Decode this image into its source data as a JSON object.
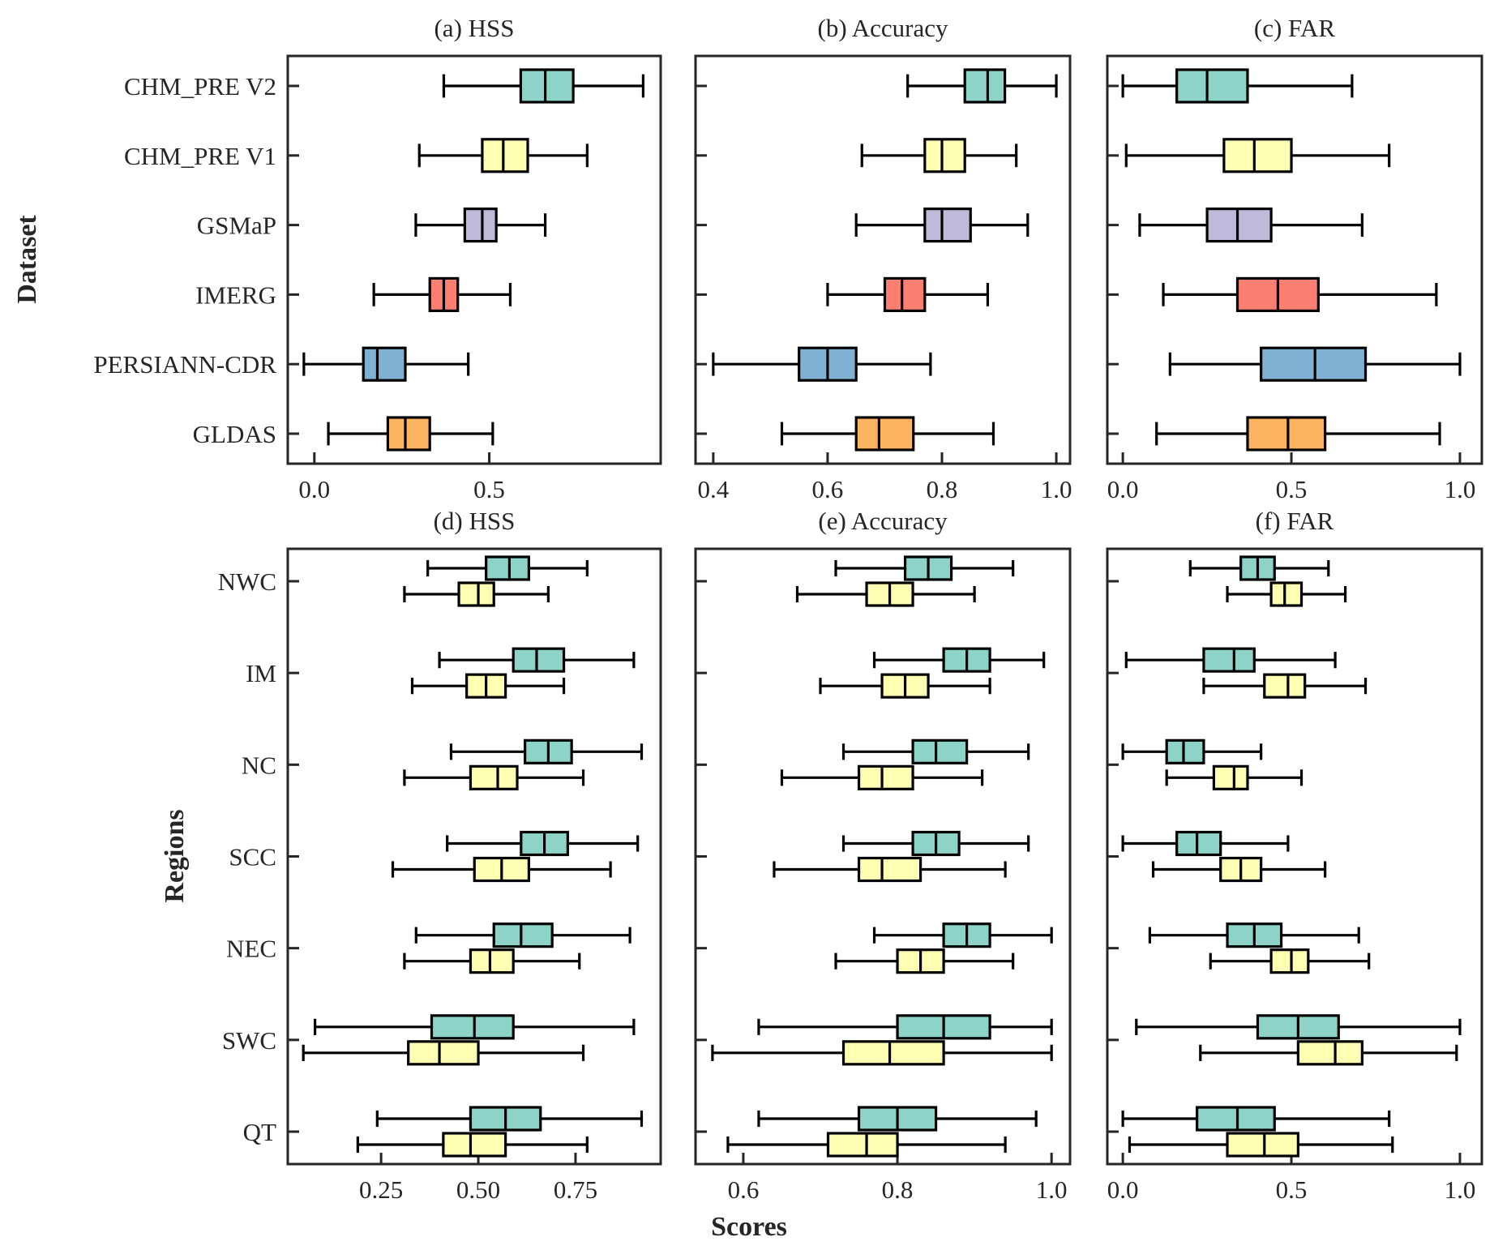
{
  "figure": {
    "ylabel_top": "Dataset",
    "ylabel_bottom": "Regions",
    "xlabel": "Scores"
  },
  "colors": {
    "CHM_PRE V2": "#8dd3c7",
    "CHM_PRE V1": "#ffffb3",
    "GSMaP": "#bebada",
    "IMERG": "#fb8072",
    "PERSIANN-CDR": "#80b1d3",
    "GLDAS": "#fdb462"
  },
  "chart_data": [
    {
      "type": "boxplot-horizontal",
      "panel": "a",
      "title": "(a) HSS",
      "xlabel": "",
      "ylabel": "Dataset",
      "xlim": [
        -0.076,
        0.99
      ],
      "xticks": [
        0.0,
        0.5
      ],
      "xtick_labels": [
        "0.0",
        "0.5"
      ],
      "categories": [
        "CHM_PRE V2",
        "CHM_PRE V1",
        "GSMaP",
        "IMERG",
        "PERSIANN-CDR",
        "GLDAS"
      ],
      "series": [
        {
          "name": "CHM_PRE V2",
          "whislo": 0.37,
          "q1": 0.59,
          "median": 0.66,
          "q3": 0.74,
          "whishi": 0.94
        },
        {
          "name": "CHM_PRE V1",
          "whislo": 0.3,
          "q1": 0.48,
          "median": 0.54,
          "q3": 0.61,
          "whishi": 0.78
        },
        {
          "name": "GSMaP",
          "whislo": 0.29,
          "q1": 0.43,
          "median": 0.48,
          "q3": 0.52,
          "whishi": 0.66
        },
        {
          "name": "IMERG",
          "whislo": 0.17,
          "q1": 0.33,
          "median": 0.37,
          "q3": 0.41,
          "whishi": 0.56
        },
        {
          "name": "PERSIANN-CDR",
          "whislo": -0.03,
          "q1": 0.14,
          "median": 0.18,
          "q3": 0.26,
          "whishi": 0.44
        },
        {
          "name": "GLDAS",
          "whislo": 0.04,
          "q1": 0.21,
          "median": 0.26,
          "q3": 0.33,
          "whishi": 0.51
        }
      ]
    },
    {
      "type": "boxplot-horizontal",
      "panel": "b",
      "title": "(b) Accuracy",
      "xlabel": "",
      "ylabel": "",
      "xlim": [
        0.369,
        1.024
      ],
      "xticks": [
        0.4,
        0.6,
        0.8,
        1.0
      ],
      "xtick_labels": [
        "0.4",
        "0.6",
        "0.8",
        "1.0"
      ],
      "categories": [
        "CHM_PRE V2",
        "CHM_PRE V1",
        "GSMaP",
        "IMERG",
        "PERSIANN-CDR",
        "GLDAS"
      ],
      "series": [
        {
          "name": "CHM_PRE V2",
          "whislo": 0.74,
          "q1": 0.84,
          "median": 0.88,
          "q3": 0.91,
          "whishi": 1.0
        },
        {
          "name": "CHM_PRE V1",
          "whislo": 0.66,
          "q1": 0.77,
          "median": 0.8,
          "q3": 0.84,
          "whishi": 0.93
        },
        {
          "name": "GSMaP",
          "whislo": 0.65,
          "q1": 0.77,
          "median": 0.8,
          "q3": 0.85,
          "whishi": 0.95
        },
        {
          "name": "IMERG",
          "whislo": 0.6,
          "q1": 0.7,
          "median": 0.73,
          "q3": 0.77,
          "whishi": 0.88
        },
        {
          "name": "PERSIANN-CDR",
          "whislo": 0.4,
          "q1": 0.55,
          "median": 0.6,
          "q3": 0.65,
          "whishi": 0.78
        },
        {
          "name": "GLDAS",
          "whislo": 0.52,
          "q1": 0.65,
          "median": 0.69,
          "q3": 0.75,
          "whishi": 0.89
        }
      ]
    },
    {
      "type": "boxplot-horizontal",
      "panel": "c",
      "title": "(c) FAR",
      "xlabel": "",
      "ylabel": "",
      "xlim": [
        -0.046,
        1.065
      ],
      "xticks": [
        0.0,
        0.5,
        1.0
      ],
      "xtick_labels": [
        "0.0",
        "0.5",
        "1.0"
      ],
      "categories": [
        "CHM_PRE V2",
        "CHM_PRE V1",
        "GSMaP",
        "IMERG",
        "PERSIANN-CDR",
        "GLDAS"
      ],
      "series": [
        {
          "name": "CHM_PRE V2",
          "whislo": 0.0,
          "q1": 0.16,
          "median": 0.25,
          "q3": 0.37,
          "whishi": 0.68
        },
        {
          "name": "CHM_PRE V1",
          "whislo": 0.01,
          "q1": 0.3,
          "median": 0.39,
          "q3": 0.5,
          "whishi": 0.79
        },
        {
          "name": "GSMaP",
          "whislo": 0.05,
          "q1": 0.25,
          "median": 0.34,
          "q3": 0.44,
          "whishi": 0.71
        },
        {
          "name": "IMERG",
          "whislo": 0.12,
          "q1": 0.34,
          "median": 0.46,
          "q3": 0.58,
          "whishi": 0.93
        },
        {
          "name": "PERSIANN-CDR",
          "whislo": 0.14,
          "q1": 0.41,
          "median": 0.57,
          "q3": 0.72,
          "whishi": 1.0
        },
        {
          "name": "GLDAS",
          "whislo": 0.1,
          "q1": 0.37,
          "median": 0.49,
          "q3": 0.6,
          "whishi": 0.94
        }
      ]
    },
    {
      "type": "boxplot-horizontal-grouped",
      "panel": "d",
      "title": "(d) HSS",
      "xlabel": "",
      "ylabel": "Regions",
      "xlim": [
        0.01,
        0.969
      ],
      "xticks": [
        0.25,
        0.5,
        0.75
      ],
      "xtick_labels": [
        "0.25",
        "0.50",
        "0.75"
      ],
      "categories": [
        "NWC",
        "IM",
        "NC",
        "SCC",
        "NEC",
        "SWC",
        "QT"
      ],
      "groups": [
        "CHM_PRE V2",
        "CHM_PRE V1"
      ],
      "series": [
        {
          "name": "CHM_PRE V2",
          "values": [
            {
              "whislo": 0.37,
              "q1": 0.52,
              "median": 0.58,
              "q3": 0.63,
              "whishi": 0.78
            },
            {
              "whislo": 0.4,
              "q1": 0.59,
              "median": 0.65,
              "q3": 0.72,
              "whishi": 0.9
            },
            {
              "whislo": 0.43,
              "q1": 0.62,
              "median": 0.68,
              "q3": 0.74,
              "whishi": 0.92
            },
            {
              "whislo": 0.42,
              "q1": 0.61,
              "median": 0.67,
              "q3": 0.73,
              "whishi": 0.91
            },
            {
              "whislo": 0.34,
              "q1": 0.54,
              "median": 0.61,
              "q3": 0.69,
              "whishi": 0.89
            },
            {
              "whislo": 0.08,
              "q1": 0.38,
              "median": 0.49,
              "q3": 0.59,
              "whishi": 0.9
            },
            {
              "whislo": 0.24,
              "q1": 0.48,
              "median": 0.57,
              "q3": 0.66,
              "whishi": 0.92
            }
          ]
        },
        {
          "name": "CHM_PRE V1",
          "values": [
            {
              "whislo": 0.31,
              "q1": 0.45,
              "median": 0.5,
              "q3": 0.54,
              "whishi": 0.68
            },
            {
              "whislo": 0.33,
              "q1": 0.47,
              "median": 0.52,
              "q3": 0.57,
              "whishi": 0.72
            },
            {
              "whislo": 0.31,
              "q1": 0.48,
              "median": 0.55,
              "q3": 0.6,
              "whishi": 0.77
            },
            {
              "whislo": 0.28,
              "q1": 0.49,
              "median": 0.56,
              "q3": 0.63,
              "whishi": 0.84
            },
            {
              "whislo": 0.31,
              "q1": 0.48,
              "median": 0.53,
              "q3": 0.59,
              "whishi": 0.76
            },
            {
              "whislo": 0.05,
              "q1": 0.32,
              "median": 0.4,
              "q3": 0.5,
              "whishi": 0.77
            },
            {
              "whislo": 0.19,
              "q1": 0.41,
              "median": 0.48,
              "q3": 0.57,
              "whishi": 0.78
            }
          ]
        }
      ]
    },
    {
      "type": "boxplot-horizontal-grouped",
      "panel": "e",
      "title": "(e) Accuracy",
      "xlabel": "Scores",
      "ylabel": "",
      "xlim": [
        0.538,
        1.024
      ],
      "xticks": [
        0.6,
        0.8,
        1.0
      ],
      "xtick_labels": [
        "0.6",
        "0.8",
        "1.0"
      ],
      "categories": [
        "NWC",
        "IM",
        "NC",
        "SCC",
        "NEC",
        "SWC",
        "QT"
      ],
      "groups": [
        "CHM_PRE V2",
        "CHM_PRE V1"
      ],
      "series": [
        {
          "name": "CHM_PRE V2",
          "values": [
            {
              "whislo": 0.72,
              "q1": 0.81,
              "median": 0.84,
              "q3": 0.87,
              "whishi": 0.95
            },
            {
              "whislo": 0.77,
              "q1": 0.86,
              "median": 0.89,
              "q3": 0.92,
              "whishi": 0.99
            },
            {
              "whislo": 0.73,
              "q1": 0.82,
              "median": 0.85,
              "q3": 0.89,
              "whishi": 0.97
            },
            {
              "whislo": 0.73,
              "q1": 0.82,
              "median": 0.85,
              "q3": 0.88,
              "whishi": 0.97
            },
            {
              "whislo": 0.77,
              "q1": 0.86,
              "median": 0.89,
              "q3": 0.92,
              "whishi": 1.0
            },
            {
              "whislo": 0.62,
              "q1": 0.8,
              "median": 0.86,
              "q3": 0.92,
              "whishi": 1.0
            },
            {
              "whislo": 0.62,
              "q1": 0.75,
              "median": 0.8,
              "q3": 0.85,
              "whishi": 0.98
            }
          ]
        },
        {
          "name": "CHM_PRE V1",
          "values": [
            {
              "whislo": 0.67,
              "q1": 0.76,
              "median": 0.79,
              "q3": 0.82,
              "whishi": 0.9
            },
            {
              "whislo": 0.7,
              "q1": 0.78,
              "median": 0.81,
              "q3": 0.84,
              "whishi": 0.92
            },
            {
              "whislo": 0.65,
              "q1": 0.75,
              "median": 0.78,
              "q3": 0.82,
              "whishi": 0.91
            },
            {
              "whislo": 0.64,
              "q1": 0.75,
              "median": 0.78,
              "q3": 0.83,
              "whishi": 0.94
            },
            {
              "whislo": 0.72,
              "q1": 0.8,
              "median": 0.83,
              "q3": 0.86,
              "whishi": 0.95
            },
            {
              "whislo": 0.56,
              "q1": 0.73,
              "median": 0.79,
              "q3": 0.86,
              "whishi": 1.0
            },
            {
              "whislo": 0.58,
              "q1": 0.71,
              "median": 0.76,
              "q3": 0.8,
              "whishi": 0.94
            }
          ]
        }
      ]
    },
    {
      "type": "boxplot-horizontal-grouped",
      "panel": "f",
      "title": "(f) FAR",
      "xlabel": "",
      "ylabel": "",
      "xlim": [
        -0.046,
        1.065
      ],
      "xticks": [
        0.0,
        0.5,
        1.0
      ],
      "xtick_labels": [
        "0.0",
        "0.5",
        "1.0"
      ],
      "categories": [
        "NWC",
        "IM",
        "NC",
        "SCC",
        "NEC",
        "SWC",
        "QT"
      ],
      "groups": [
        "CHM_PRE V2",
        "CHM_PRE V1"
      ],
      "series": [
        {
          "name": "CHM_PRE V2",
          "values": [
            {
              "whislo": 0.2,
              "q1": 0.35,
              "median": 0.4,
              "q3": 0.45,
              "whishi": 0.61
            },
            {
              "whislo": 0.01,
              "q1": 0.24,
              "median": 0.33,
              "q3": 0.39,
              "whishi": 0.63
            },
            {
              "whislo": 0.0,
              "q1": 0.13,
              "median": 0.18,
              "q3": 0.24,
              "whishi": 0.41
            },
            {
              "whislo": 0.0,
              "q1": 0.16,
              "median": 0.22,
              "q3": 0.29,
              "whishi": 0.49
            },
            {
              "whislo": 0.08,
              "q1": 0.31,
              "median": 0.39,
              "q3": 0.47,
              "whishi": 0.7
            },
            {
              "whislo": 0.04,
              "q1": 0.4,
              "median": 0.52,
              "q3": 0.64,
              "whishi": 1.0
            },
            {
              "whislo": 0.0,
              "q1": 0.22,
              "median": 0.34,
              "q3": 0.45,
              "whishi": 0.79
            }
          ]
        },
        {
          "name": "CHM_PRE V1",
          "values": [
            {
              "whislo": 0.31,
              "q1": 0.44,
              "median": 0.48,
              "q3": 0.53,
              "whishi": 0.66
            },
            {
              "whislo": 0.24,
              "q1": 0.42,
              "median": 0.49,
              "q3": 0.54,
              "whishi": 0.72
            },
            {
              "whislo": 0.13,
              "q1": 0.27,
              "median": 0.33,
              "q3": 0.37,
              "whishi": 0.53
            },
            {
              "whislo": 0.09,
              "q1": 0.29,
              "median": 0.35,
              "q3": 0.41,
              "whishi": 0.6
            },
            {
              "whislo": 0.26,
              "q1": 0.44,
              "median": 0.5,
              "q3": 0.55,
              "whishi": 0.73
            },
            {
              "whislo": 0.23,
              "q1": 0.52,
              "median": 0.63,
              "q3": 0.71,
              "whishi": 0.99
            },
            {
              "whislo": 0.02,
              "q1": 0.31,
              "median": 0.42,
              "q3": 0.52,
              "whishi": 0.8
            }
          ]
        }
      ]
    }
  ]
}
